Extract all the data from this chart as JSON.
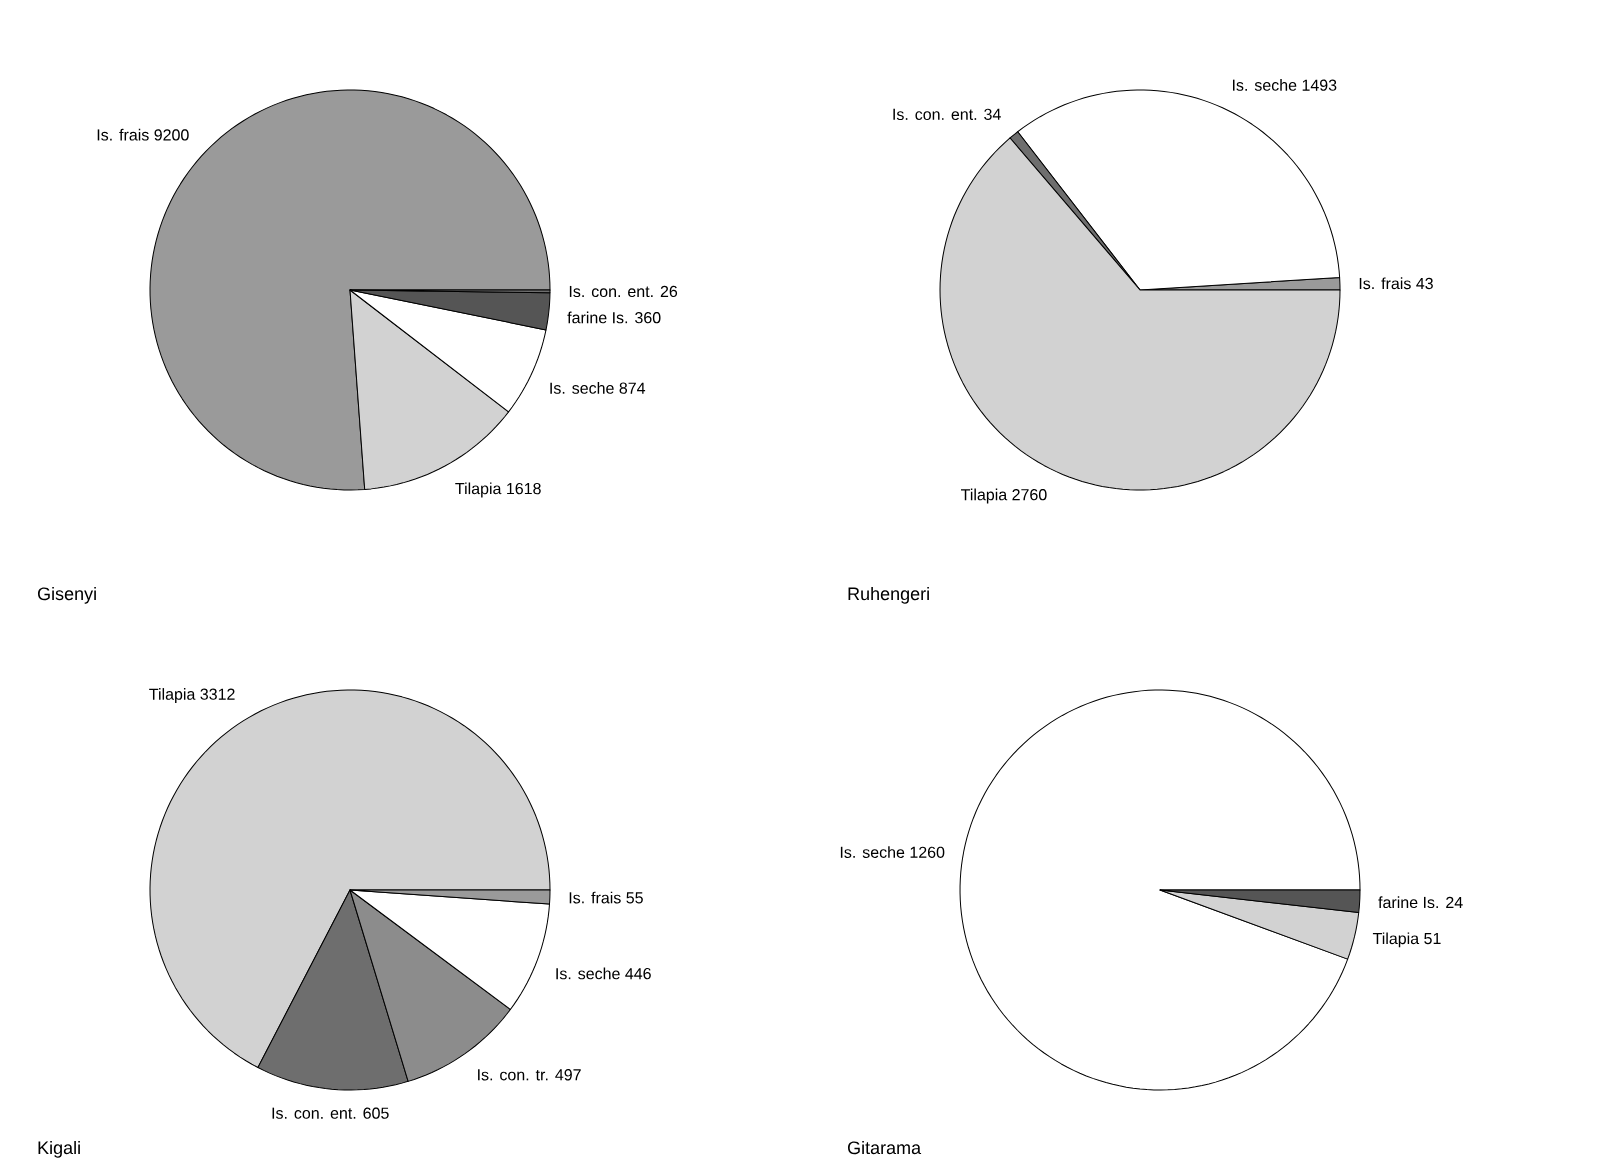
{
  "chart_data": [
    {
      "type": "pie",
      "title": "Gisenyi",
      "categories": [
        "Is. frais",
        "Tilapia",
        "Is. seche",
        "farine Is.",
        "Is. con. ent."
      ],
      "values": [
        9200,
        1618,
        874,
        360,
        26
      ],
      "colors": [
        "#9a9a9a",
        "#d2d2d2",
        "#ffffff",
        "#555555",
        "#6e6e6e"
      ],
      "data_labels": true
    },
    {
      "type": "pie",
      "title": "Ruhengeri",
      "categories": [
        "Is. frais",
        "Is. seche",
        "Is. con. ent.",
        "Tilapia"
      ],
      "values": [
        43,
        1493,
        34,
        2760
      ],
      "colors": [
        "#9a9a9a",
        "#ffffff",
        "#6e6e6e",
        "#d2d2d2"
      ],
      "data_labels": true
    },
    {
      "type": "pie",
      "title": "Kigali",
      "categories": [
        "Tilapia",
        "Is. con. ent.",
        "Is. con. tr.",
        "Is. seche",
        "Is. frais"
      ],
      "values": [
        3312,
        605,
        497,
        446,
        55
      ],
      "colors": [
        "#d2d2d2",
        "#6e6e6e",
        "#8c8c8c",
        "#ffffff",
        "#9a9a9a"
      ],
      "data_labels": true
    },
    {
      "type": "pie",
      "title": "Gitarama",
      "categories": [
        "Is. seche",
        "Tilapia",
        "farine Is."
      ],
      "values": [
        1260,
        51,
        24
      ],
      "colors": [
        "#ffffff",
        "#d2d2d2",
        "#555555"
      ],
      "data_labels": true
    }
  ]
}
